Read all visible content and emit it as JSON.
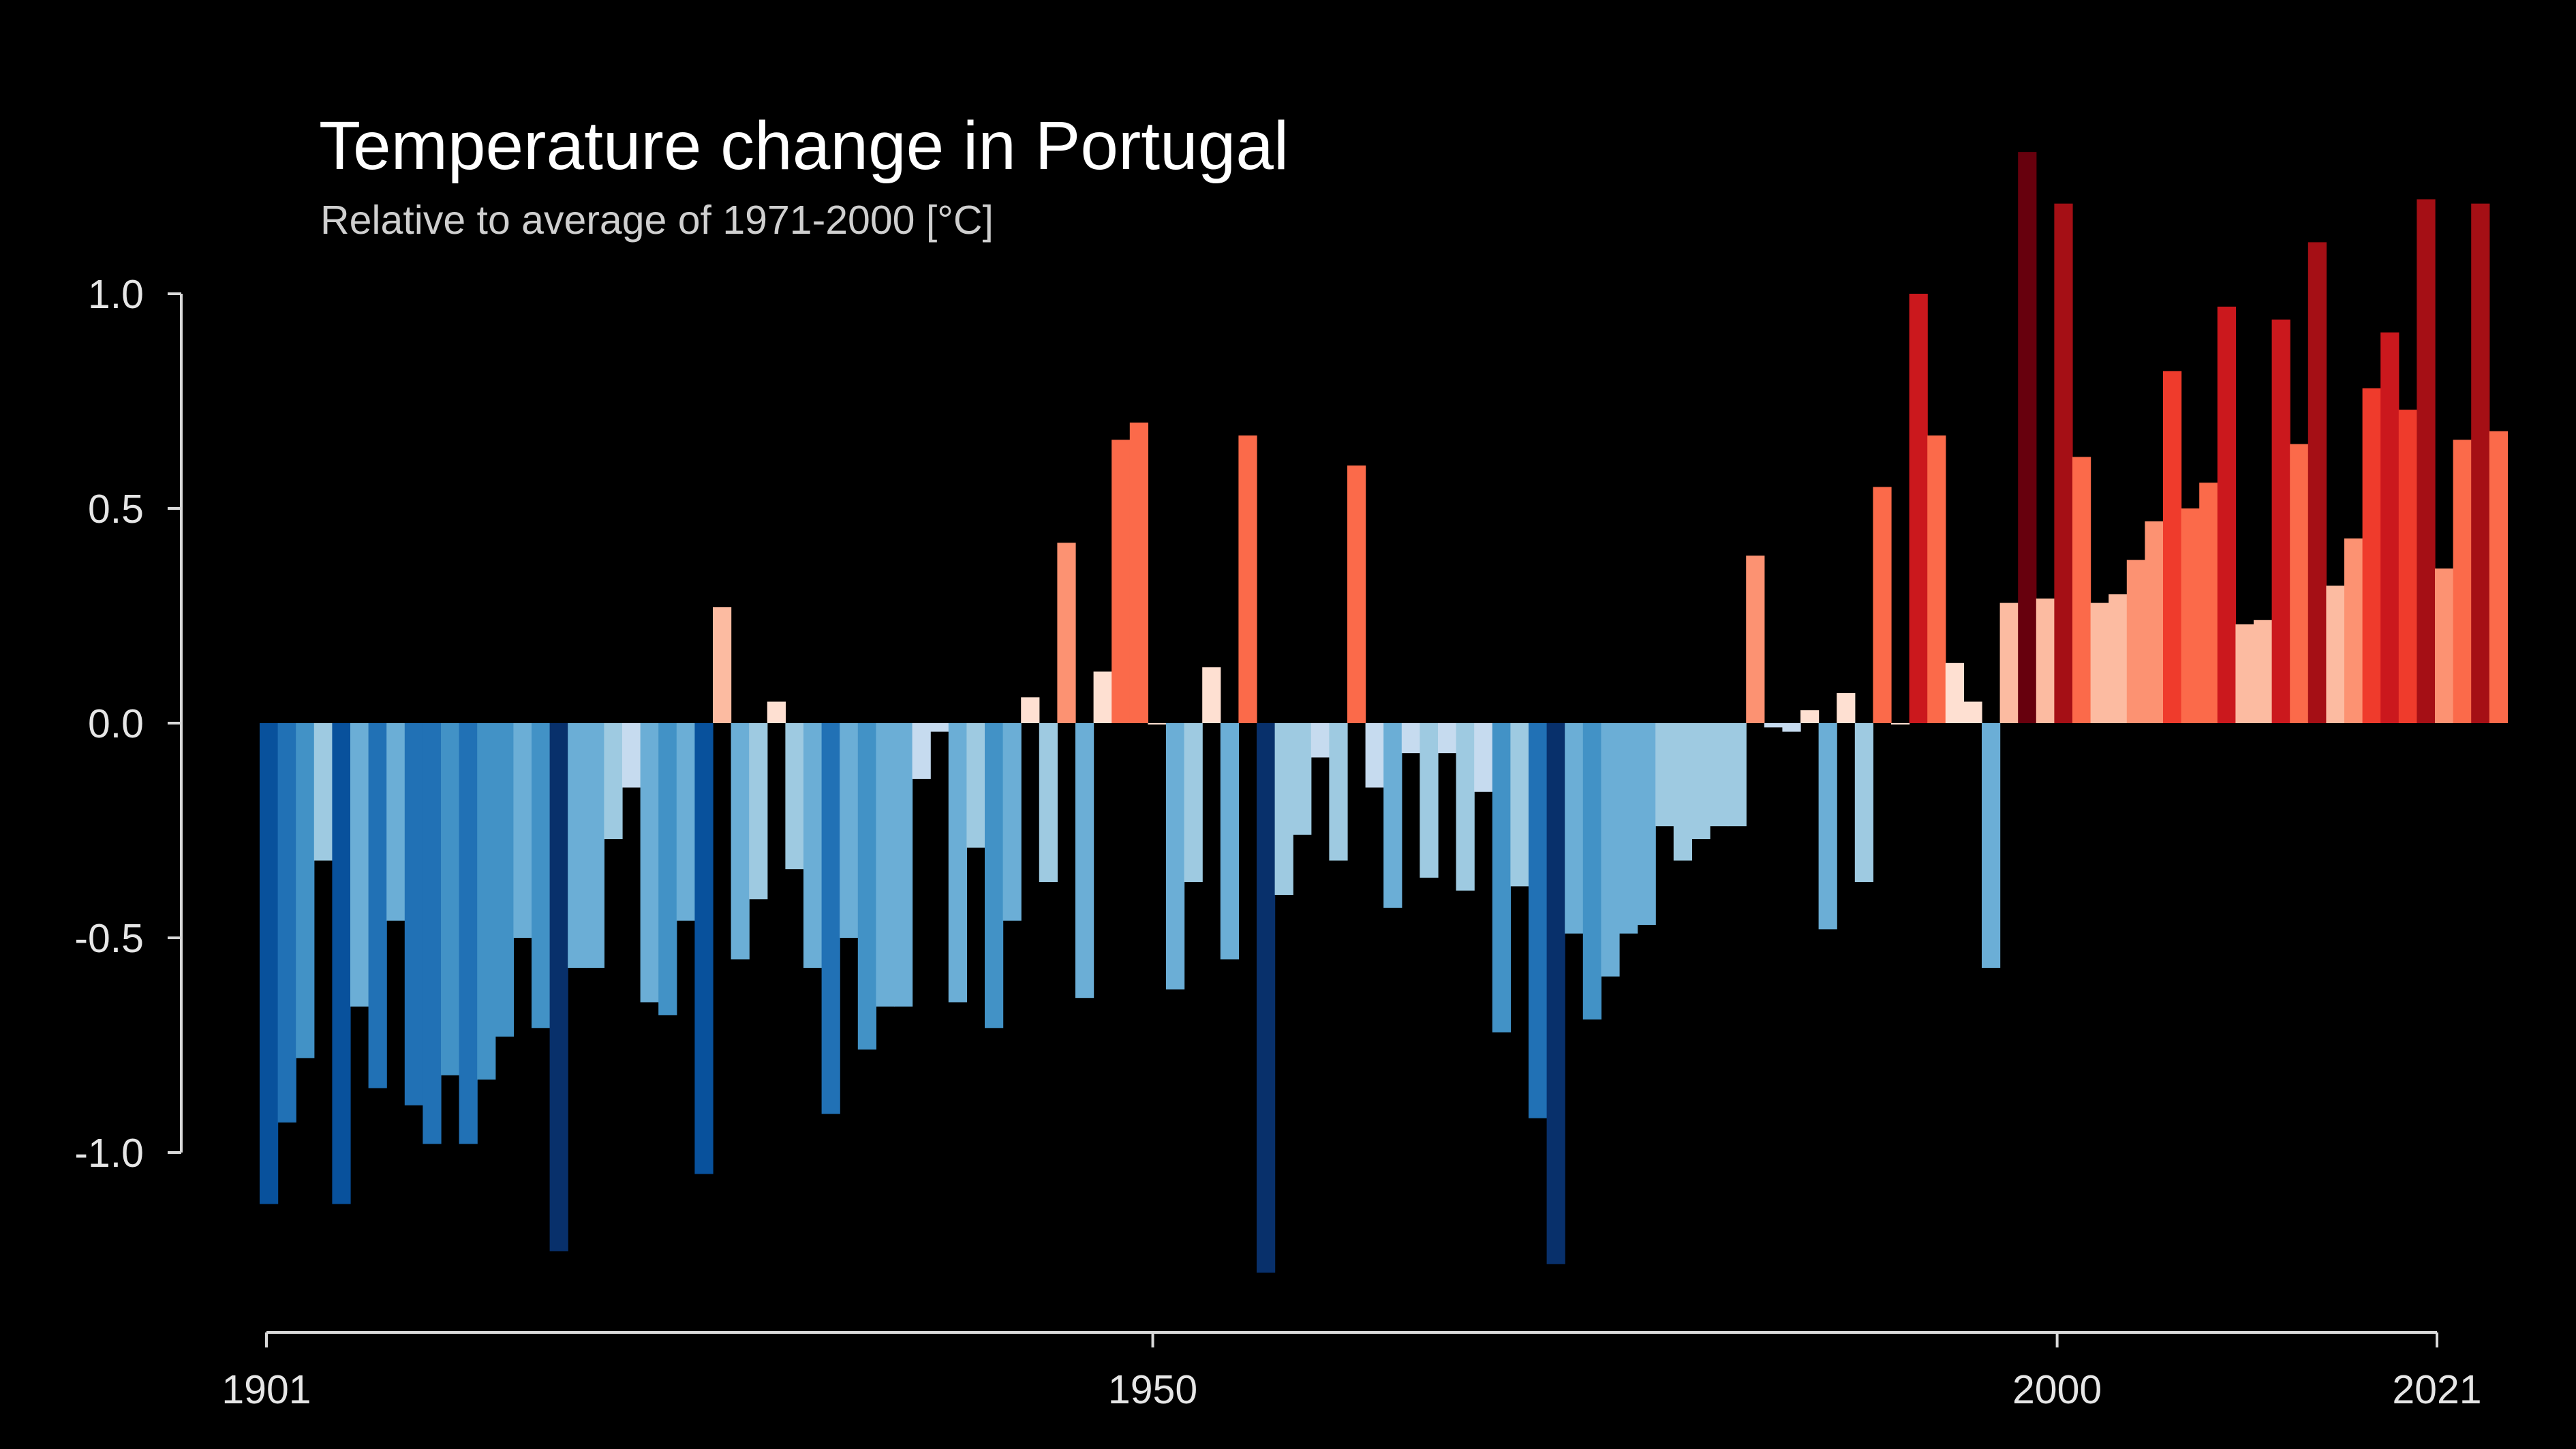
{
  "chart_data": {
    "type": "bar",
    "title": "Temperature change in Portugal",
    "subtitle": "Relative to average of 1971-2000  [°C]",
    "xlabel": "",
    "ylabel": "",
    "x_start": 1901,
    "x_end": 2021,
    "xlim": [
      1901,
      2021
    ],
    "ylim": [
      -1.3,
      1.3
    ],
    "grid": false,
    "legend": "none",
    "x_ticks": [
      {
        "value": 1901,
        "label": "1901"
      },
      {
        "value": 1950,
        "label": "1950"
      },
      {
        "value": 2000,
        "label": "2000"
      },
      {
        "value": 2021,
        "label": "2021"
      }
    ],
    "y_ticks": [
      {
        "value": 1.0,
        "label": "1.0"
      },
      {
        "value": 0.5,
        "label": "0.5"
      },
      {
        "value": 0.0,
        "label": "0.0"
      },
      {
        "value": -0.5,
        "label": "-0.5"
      },
      {
        "value": -1.0,
        "label": "-1.0"
      }
    ],
    "values": [
      -1.12,
      -0.93,
      -0.78,
      -0.32,
      -1.12,
      -0.66,
      -0.85,
      -0.46,
      -0.89,
      -0.98,
      -0.82,
      -0.98,
      -0.83,
      -0.73,
      -0.5,
      -0.71,
      -1.23,
      -0.57,
      -0.57,
      -0.27,
      -0.15,
      -0.65,
      -0.68,
      -0.46,
      -1.05,
      0.27,
      -0.55,
      -0.41,
      0.05,
      -0.34,
      -0.57,
      -0.91,
      -0.5,
      -0.76,
      -0.66,
      -0.66,
      -0.13,
      -0.02,
      -0.65,
      -0.29,
      -0.71,
      -0.46,
      0.06,
      -0.37,
      0.42,
      -0.64,
      0.12,
      0.66,
      0.7,
      0.0,
      -0.62,
      -0.37,
      0.13,
      -0.55,
      0.67,
      -1.28,
      -0.4,
      -0.26,
      -0.08,
      -0.32,
      0.6,
      -0.15,
      -0.43,
      -0.07,
      -0.36,
      -0.07,
      -0.39,
      -0.16,
      -0.72,
      -0.38,
      -0.92,
      -1.26,
      -0.49,
      -0.69,
      -0.59,
      -0.49,
      -0.47,
      -0.24,
      -0.32,
      -0.27,
      -0.24,
      -0.24,
      0.39,
      -0.01,
      -0.02,
      0.03,
      -0.48,
      0.07,
      -0.37,
      0.55,
      0.0,
      1.0,
      0.67,
      0.14,
      0.05,
      -0.57,
      0.28,
      1.33,
      0.29,
      1.21,
      0.62,
      0.28,
      0.3,
      0.38,
      0.47,
      0.82,
      0.5,
      0.56,
      0.97,
      0.23,
      0.24,
      0.94,
      0.65,
      1.12,
      0.32,
      0.43,
      0.78,
      0.91,
      0.73,
      1.22,
      0.36,
      0.66,
      1.21,
      0.68
    ],
    "colors": {
      "background": "#000000",
      "axis": "#d9d9d9",
      "text": "#e6e6e6",
      "cold_scale": [
        "#c6dbef",
        "#9ecae1",
        "#6baed6",
        "#4292c6",
        "#2171b5",
        "#08519c",
        "#08306b"
      ],
      "warm_scale": [
        "#fee0d2",
        "#fcbba1",
        "#fc9272",
        "#fb6a4a",
        "#ef3b2c",
        "#cb181d",
        "#a50f15",
        "#67000d"
      ]
    }
  }
}
